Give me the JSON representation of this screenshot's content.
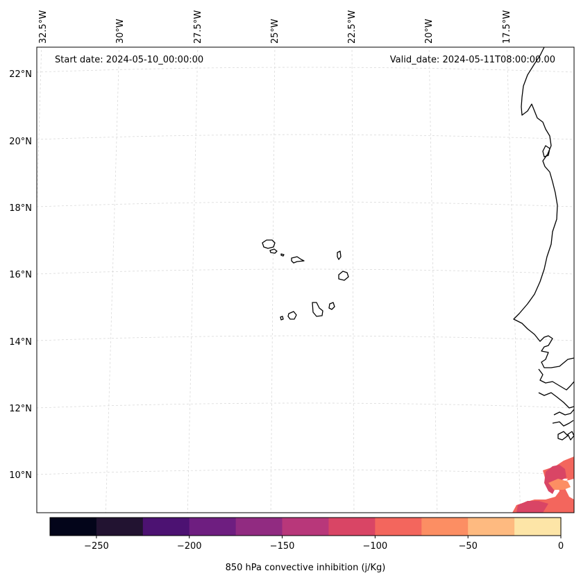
{
  "map": {
    "start_label": "Start date: 2024-05-10_00:00:00",
    "valid_label": "Valid_date: 2024-05-11T08:00:00.00",
    "lat_labels": [
      "22°N",
      "20°N",
      "18°N",
      "16°N",
      "14°N",
      "12°N",
      "10°N"
    ],
    "lon_labels": [
      "32.5°W",
      "30°W",
      "27.5°W",
      "25°W",
      "22.5°W",
      "20°W",
      "17.5°W"
    ],
    "features": [
      "Cabo Verde islands",
      "West African coastline"
    ]
  },
  "colorbar": {
    "label": "850 hPa convective inhibition (j/Kg)",
    "ticks": [
      "−250",
      "−200",
      "−150",
      "−100",
      "−50",
      "0"
    ],
    "tick_values": [
      -250,
      -200,
      -150,
      -100,
      -50,
      0
    ],
    "range": [
      -275,
      0
    ],
    "colors": [
      "#03051a",
      "#221331",
      "#4c1272",
      "#6e1e80",
      "#912b81",
      "#b8377a",
      "#d94565",
      "#f3665d",
      "#fc8e63",
      "#feba80",
      "#fde5a7"
    ]
  }
}
